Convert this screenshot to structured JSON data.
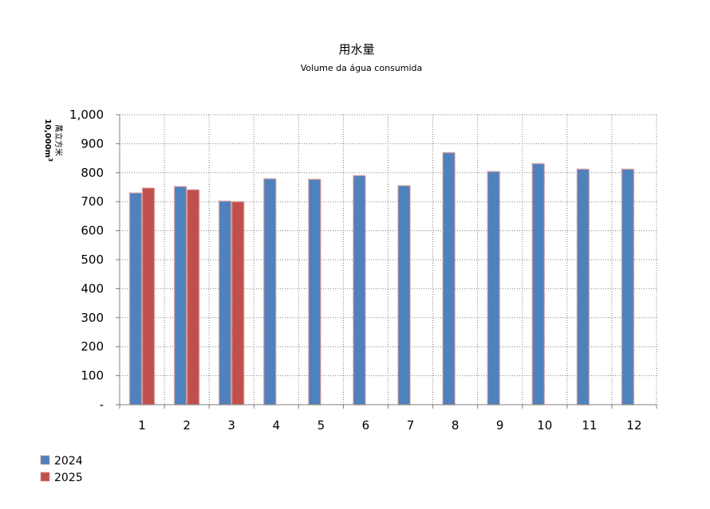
{
  "chart_data": {
    "type": "bar",
    "title": "用水量",
    "subtitle": "Volume da água consumida",
    "ylabel_line1": "萬立方米",
    "ylabel_line2": "10,000m",
    "ylabel_sup": "3",
    "categories": [
      "1",
      "2",
      "3",
      "4",
      "5",
      "6",
      "7",
      "8",
      "9",
      "10",
      "11",
      "12"
    ],
    "ylim": [
      0,
      1000
    ],
    "yticks": [
      0,
      100,
      200,
      300,
      400,
      500,
      600,
      700,
      800,
      900,
      1000
    ],
    "ytick_labels": [
      "-",
      "100",
      "200",
      "300",
      "400",
      "500",
      "600",
      "700",
      "800",
      "900",
      "1,000"
    ],
    "grid": true,
    "legend_position": "bottom-left",
    "series": [
      {
        "name": "2024",
        "color": "#4F81BD",
        "values": [
          730,
          752,
          702,
          779,
          777,
          790,
          755,
          869,
          804,
          831,
          812,
          812
        ]
      },
      {
        "name": "2025",
        "color": "#C0504D",
        "values": [
          747,
          741,
          700,
          null,
          null,
          null,
          null,
          null,
          null,
          null,
          null,
          null
        ]
      }
    ]
  }
}
